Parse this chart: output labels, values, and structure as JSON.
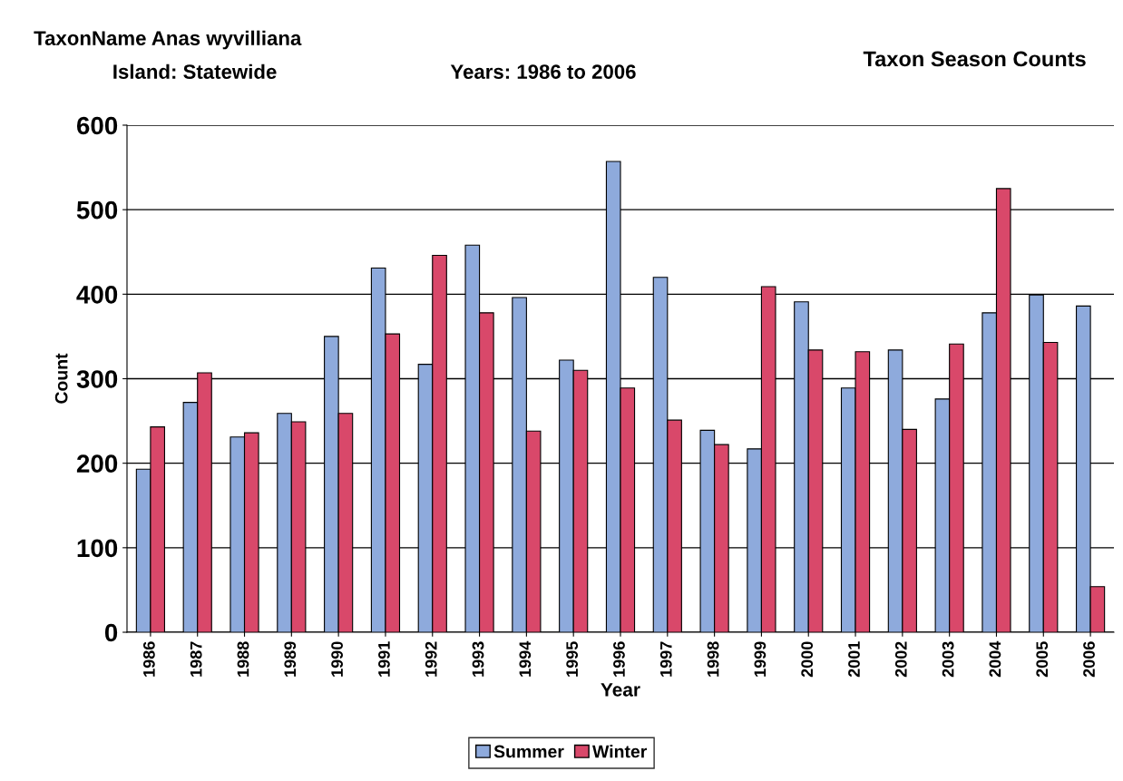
{
  "chart_data": {
    "type": "bar",
    "title": "Taxon Season Counts",
    "annotations": [
      "TaxonName Anas wyvilliana",
      "Island: Statewide",
      "Years: 1986 to 2006"
    ],
    "xlabel": "Year",
    "ylabel": "Count",
    "categories": [
      "1986",
      "1987",
      "1988",
      "1989",
      "1990",
      "1991",
      "1992",
      "1993",
      "1994",
      "1995",
      "1996",
      "1997",
      "1998",
      "1999",
      "2000",
      "2001",
      "2002",
      "2003",
      "2004",
      "2005",
      "2006"
    ],
    "series": [
      {
        "name": "Summer",
        "color": "#8eaadc",
        "values": [
          193,
          272,
          231,
          259,
          350,
          431,
          317,
          458,
          396,
          322,
          557,
          420,
          239,
          217,
          391,
          289,
          334,
          276,
          378,
          399,
          386
        ]
      },
      {
        "name": "Winter",
        "color": "#d9486a",
        "values": [
          243,
          307,
          236,
          249,
          259,
          353,
          446,
          378,
          238,
          310,
          289,
          251,
          222,
          409,
          334,
          332,
          240,
          341,
          525,
          343,
          54
        ]
      }
    ],
    "ylim": [
      0,
      600
    ],
    "yticks": [
      0,
      100,
      200,
      300,
      400,
      500,
      600
    ],
    "grid": "y",
    "legend": "bottom"
  }
}
